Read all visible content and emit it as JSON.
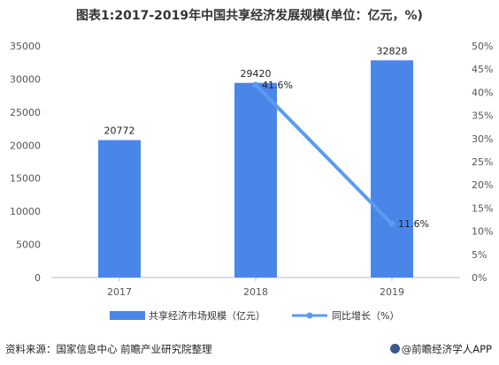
{
  "chart_data": {
    "type": "bar",
    "title": "图表1:2017-2019年中国共享经济发展规模(单位：亿元，%)",
    "categories": [
      "2017",
      "2018",
      "2019"
    ],
    "series": [
      {
        "name": "共享经济市场规模（亿元）",
        "type": "bar",
        "axis": "left",
        "values": [
          20772,
          29420,
          32828
        ],
        "labels": [
          "20772",
          "29420",
          "32828"
        ],
        "color": "#4a86e8"
      },
      {
        "name": "同比增长（%）",
        "type": "line",
        "axis": "right",
        "points": [
          {
            "x": "2018",
            "y": 41.6
          },
          {
            "x": "2019",
            "y": 11.6
          }
        ],
        "labels": [
          "41.6%",
          "11.6%"
        ],
        "color": "#5b9bf0"
      }
    ],
    "y_left": {
      "min": 0,
      "max": 35000,
      "step": 5000,
      "ticks": [
        "0",
        "5000",
        "10000",
        "15000",
        "20000",
        "25000",
        "30000",
        "35000"
      ]
    },
    "y_right": {
      "min": 0,
      "max": 50,
      "step": 5,
      "ticks": [
        "0%",
        "5%",
        "10%",
        "15%",
        "20%",
        "25%",
        "30%",
        "35%",
        "40%",
        "45%",
        "50%"
      ]
    },
    "grid": false,
    "legend": "bottom"
  },
  "footer": {
    "source": "资料来源：国家信息中心 前瞻产业研究院整理",
    "brand": "@前瞻经济学人APP"
  }
}
